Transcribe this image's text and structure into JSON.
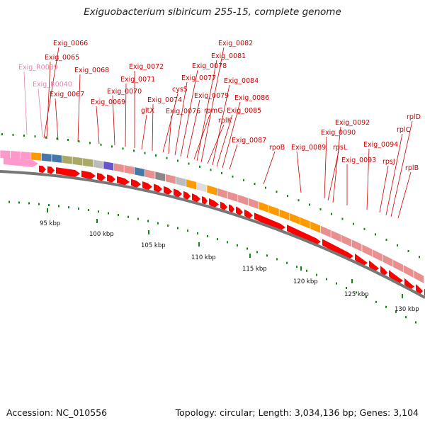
{
  "title": "Exiguobacterium sibiricum 255-15, complete genome",
  "footer": {
    "accession": "Accession: NC_010556",
    "summary": "Topology: circular; Length: 3,034,136 bp; Genes: 3,104"
  },
  "colors": {
    "cds": "#ff0000",
    "rna": "#ff99cc",
    "label_cds": "#cc0000",
    "label_rna": "#e882b4",
    "tick": "#118811"
  },
  "scale": {
    "labels": [
      "95 kbp",
      "100 kbp",
      "105 kbp",
      "110 kbp",
      "115 kbp",
      "120 kbp",
      "125 kbp",
      "130 kbp"
    ]
  },
  "gene_labels": [
    {
      "text": "Exig_R0039",
      "kind": "rna"
    },
    {
      "text": "Exig_R0040",
      "kind": "rna"
    },
    {
      "text": "Exig_0066",
      "kind": "cds"
    },
    {
      "text": "Exig_0065",
      "kind": "cds"
    },
    {
      "text": "Exig_0067",
      "kind": "cds"
    },
    {
      "text": "Exig_0068",
      "kind": "cds"
    },
    {
      "text": "Exig_0069",
      "kind": "cds"
    },
    {
      "text": "Exig_0070",
      "kind": "cds"
    },
    {
      "text": "Exig_0071",
      "kind": "cds"
    },
    {
      "text": "Exig_0072",
      "kind": "cds"
    },
    {
      "text": "gltX",
      "kind": "cds"
    },
    {
      "text": "Exig_0074",
      "kind": "cds"
    },
    {
      "text": "cysS",
      "kind": "cds"
    },
    {
      "text": "Exig_0076",
      "kind": "cds"
    },
    {
      "text": "Exig_0077",
      "kind": "cds"
    },
    {
      "text": "Exig_0078",
      "kind": "cds"
    },
    {
      "text": "Exig_0079",
      "kind": "cds"
    },
    {
      "text": "rpmG",
      "kind": "cds"
    },
    {
      "text": "Exig_0081",
      "kind": "cds"
    },
    {
      "text": "Exig_0082",
      "kind": "cds"
    },
    {
      "text": "rplK",
      "kind": "cds"
    },
    {
      "text": "Exig_0084",
      "kind": "cds"
    },
    {
      "text": "Exig_0085",
      "kind": "cds"
    },
    {
      "text": "Exig_0086",
      "kind": "cds"
    },
    {
      "text": "Exig_0087",
      "kind": "cds"
    },
    {
      "text": "rpoB",
      "kind": "cds"
    },
    {
      "text": "Exig_0089",
      "kind": "cds"
    },
    {
      "text": "Exig_0090",
      "kind": "cds"
    },
    {
      "text": "rpsL",
      "kind": "cds"
    },
    {
      "text": "Exig_0092",
      "kind": "cds"
    },
    {
      "text": "Exig_0093",
      "kind": "cds"
    },
    {
      "text": "Exig_0094",
      "kind": "cds"
    },
    {
      "text": "rpsJ",
      "kind": "cds"
    },
    {
      "text": "rplC",
      "kind": "cds"
    },
    {
      "text": "rplD",
      "kind": "cds"
    },
    {
      "text": "rplB",
      "kind": "cds"
    }
  ]
}
